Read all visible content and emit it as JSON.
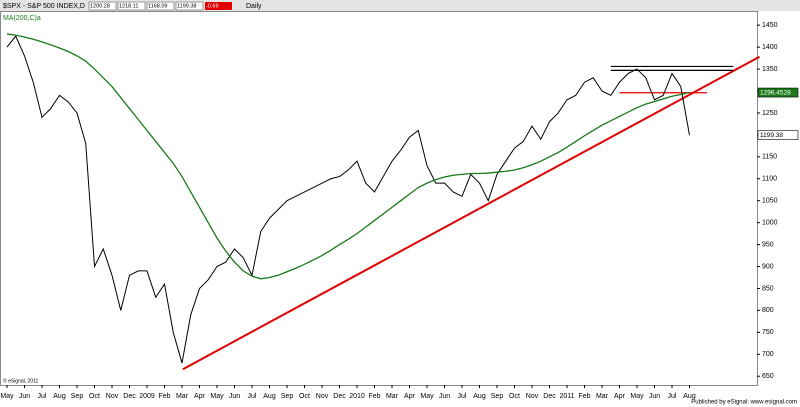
{
  "chart_data": {
    "type": "line",
    "header": {
      "symbol": "$SPX - S&P 500 INDEX,D",
      "quotes": [
        1200.28,
        1218.11,
        1168.09,
        1199.38
      ],
      "change": "-0.69",
      "interval": "Daily"
    },
    "legend_text": "MA(200,C)a",
    "categories": [
      "May",
      null,
      "Jun",
      null,
      "Jul",
      null,
      "Aug",
      null,
      "Sep",
      null,
      "Oct",
      null,
      "Nov",
      null,
      "Dec",
      null,
      "2009",
      null,
      "Feb",
      null,
      "Mar",
      null,
      "Apr",
      null,
      "May",
      null,
      "Jun",
      null,
      "Jul",
      null,
      "Aug",
      null,
      "Sep",
      null,
      "Oct",
      null,
      "Nov",
      null,
      "Dec",
      null,
      "2010",
      null,
      "Feb",
      null,
      "Mar",
      null,
      "Apr",
      null,
      "May",
      null,
      "Jun",
      null,
      "Jul",
      null,
      "Aug",
      null,
      "Sep",
      null,
      "Oct",
      null,
      "Nov",
      null,
      "Dec",
      null,
      "2011",
      null,
      "Feb",
      null,
      "Mar",
      null,
      "Apr",
      null,
      "May",
      null,
      "Jun",
      null,
      "Jul",
      null,
      "Aug"
    ],
    "series": [
      {
        "name": "$SPX",
        "color": "#000000",
        "values": [
          1400,
          1425,
          1380,
          1320,
          1240,
          1260,
          1290,
          1275,
          1250,
          1180,
          900,
          940,
          880,
          800,
          880,
          890,
          890,
          830,
          860,
          750,
          680,
          790,
          850,
          870,
          900,
          910,
          940,
          920,
          880,
          980,
          1010,
          1030,
          1050,
          1060,
          1070,
          1080,
          1090,
          1100,
          1105,
          1120,
          1140,
          1090,
          1070,
          1105,
          1140,
          1165,
          1195,
          1210,
          1130,
          1090,
          1090,
          1070,
          1060,
          1110,
          1090,
          1050,
          1110,
          1140,
          1170,
          1185,
          1220,
          1190,
          1230,
          1250,
          1280,
          1290,
          1320,
          1330,
          1300,
          1290,
          1320,
          1340,
          1350,
          1330,
          1280,
          1290,
          1340,
          1310,
          1199.38
        ],
        "tag_color": "#ffffff"
      },
      {
        "name": "MA(200,C)",
        "color": "#1a7a1a",
        "values": [
          1430,
          1427,
          1423,
          1418,
          1412,
          1405,
          1398,
          1390,
          1380,
          1368,
          1350,
          1330,
          1310,
          1285,
          1260,
          1235,
          1210,
          1185,
          1160,
          1135,
          1105,
          1070,
          1035,
          1000,
          965,
          935,
          910,
          890,
          878,
          872,
          875,
          880,
          888,
          896,
          905,
          915,
          925,
          937,
          950,
          962,
          975,
          990,
          1005,
          1020,
          1035,
          1050,
          1065,
          1080,
          1090,
          1098,
          1104,
          1108,
          1110,
          1112,
          1112,
          1113,
          1115,
          1117,
          1120,
          1125,
          1132,
          1140,
          1150,
          1160,
          1172,
          1185,
          1198,
          1210,
          1222,
          1232,
          1242,
          1252,
          1262,
          1270,
          1276,
          1282,
          1288,
          1292,
          1296.4528
        ],
        "tag_color": "#1a7a1a"
      }
    ],
    "trendlines": [
      {
        "x": [
          20.1,
          86
        ],
        "y": [
          666,
          1378
        ],
        "color": "#e00000"
      },
      {
        "x": [
          70,
          80
        ],
        "y": [
          1296,
          1296
        ],
        "color": "#e00000"
      },
      {
        "x": [
          69,
          83
        ],
        "y": [
          1356,
          1356
        ],
        "color": "#000000"
      },
      {
        "x": [
          69,
          83
        ],
        "y": [
          1347,
          1347
        ],
        "color": "#000000"
      }
    ],
    "ylim": [
      630,
      1480
    ],
    "yticks": [
      650,
      700,
      750,
      800,
      850,
      900,
      950,
      1000,
      1050,
      1100,
      1150,
      1200,
      1250,
      1300,
      1350,
      1400,
      1450
    ],
    "footer_left": "© eSignal, 2011",
    "footer_right": "Published by eSignal: www.esignal.com"
  }
}
